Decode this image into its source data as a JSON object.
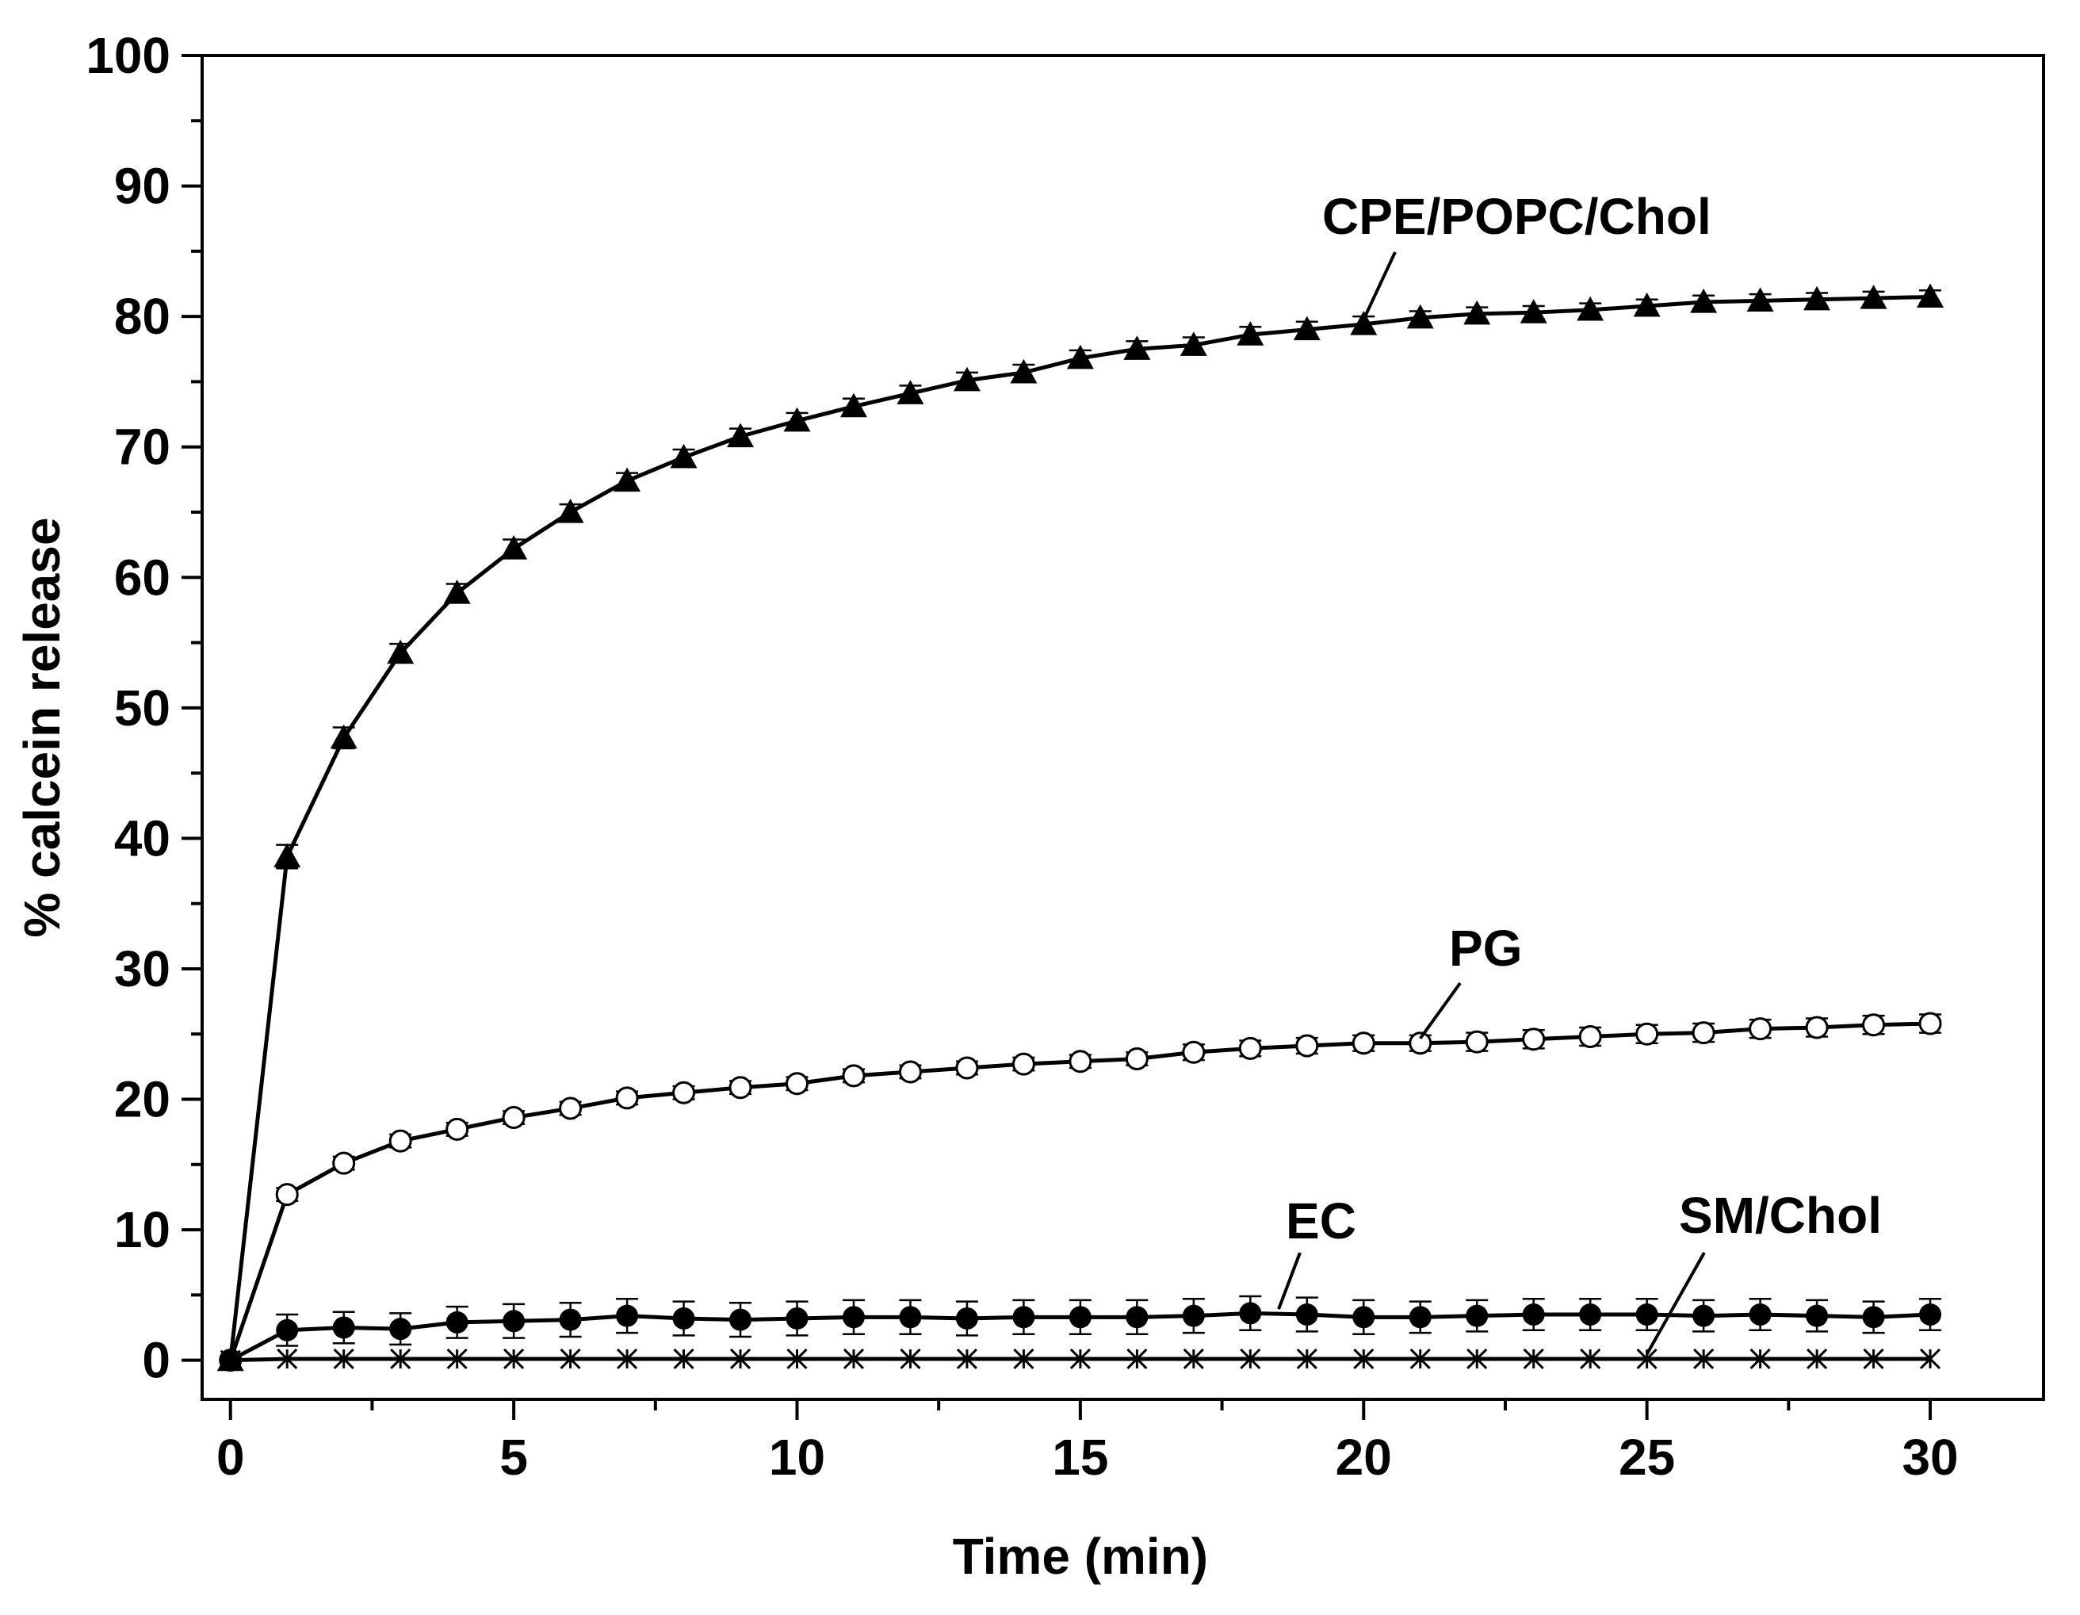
{
  "chart_data": {
    "type": "line",
    "title": "",
    "xlabel": "Time (min)",
    "ylabel": "% calcein release",
    "xlim": [
      -0.5,
      32
    ],
    "ylim": [
      -3,
      100
    ],
    "xticks": [
      0,
      5,
      10,
      15,
      20,
      25,
      30
    ],
    "yticks": [
      0,
      10,
      20,
      30,
      40,
      50,
      60,
      70,
      80,
      90,
      100
    ],
    "x": [
      0,
      1,
      2,
      3,
      4,
      5,
      6,
      7,
      8,
      9,
      10,
      11,
      12,
      13,
      14,
      15,
      16,
      17,
      18,
      19,
      20,
      21,
      22,
      23,
      24,
      25,
      26,
      27,
      28,
      29,
      30
    ],
    "series": [
      {
        "name": "CPE/POPC/Chol",
        "marker": "filled-triangle",
        "values": [
          0,
          38.6,
          47.7,
          54.2,
          58.8,
          62.2,
          65.0,
          67.4,
          69.2,
          70.8,
          72.0,
          73.1,
          74.1,
          75.1,
          75.7,
          76.8,
          77.5,
          77.8,
          78.6,
          79.0,
          79.4,
          79.9,
          80.2,
          80.3,
          80.5,
          80.8,
          81.1,
          81.2,
          81.3,
          81.4,
          81.5
        ],
        "errors": [
          0,
          0.9,
          0.8,
          0.7,
          0.7,
          0.7,
          0.6,
          0.6,
          0.6,
          0.6,
          0.6,
          0.6,
          0.6,
          0.6,
          0.6,
          0.6,
          0.6,
          0.6,
          0.6,
          0.6,
          0.6,
          0.5,
          0.5,
          0.5,
          0.5,
          0.5,
          0.5,
          0.5,
          0.5,
          0.5,
          0.5
        ]
      },
      {
        "name": "PG",
        "marker": "open-circle",
        "values": [
          0,
          12.7,
          15.1,
          16.8,
          17.7,
          18.6,
          19.3,
          20.1,
          20.5,
          20.9,
          21.2,
          21.8,
          22.1,
          22.4,
          22.7,
          22.9,
          23.1,
          23.6,
          23.9,
          24.1,
          24.3,
          24.3,
          24.4,
          24.6,
          24.8,
          25.0,
          25.1,
          25.4,
          25.5,
          25.7,
          25.8
        ],
        "errors": [
          0,
          0.5,
          0.5,
          0.5,
          0.5,
          0.5,
          0.5,
          0.5,
          0.5,
          0.5,
          0.5,
          0.5,
          0.5,
          0.5,
          0.5,
          0.5,
          0.5,
          0.6,
          0.6,
          0.6,
          0.6,
          0.6,
          0.7,
          0.7,
          0.7,
          0.7,
          0.7,
          0.7,
          0.7,
          0.7,
          0.7
        ]
      },
      {
        "name": "EC",
        "marker": "filled-circle",
        "values": [
          0,
          2.3,
          2.5,
          2.4,
          2.9,
          3.0,
          3.1,
          3.4,
          3.2,
          3.1,
          3.2,
          3.3,
          3.3,
          3.2,
          3.3,
          3.3,
          3.3,
          3.4,
          3.6,
          3.5,
          3.3,
          3.3,
          3.4,
          3.5,
          3.5,
          3.5,
          3.4,
          3.5,
          3.4,
          3.3,
          3.5
        ],
        "errors": [
          0,
          1.2,
          1.2,
          1.2,
          1.2,
          1.3,
          1.3,
          1.3,
          1.3,
          1.3,
          1.3,
          1.3,
          1.3,
          1.3,
          1.3,
          1.3,
          1.3,
          1.3,
          1.3,
          1.3,
          1.3,
          1.2,
          1.2,
          1.2,
          1.2,
          1.2,
          1.2,
          1.2,
          1.2,
          1.2,
          1.2
        ]
      },
      {
        "name": "SM/Chol",
        "marker": "asterisk",
        "values": [
          0,
          0.1,
          0.1,
          0.1,
          0.1,
          0.1,
          0.1,
          0.1,
          0.1,
          0.1,
          0.1,
          0.1,
          0.1,
          0.1,
          0.1,
          0.1,
          0.1,
          0.1,
          0.1,
          0.1,
          0.1,
          0.1,
          0.1,
          0.1,
          0.1,
          0.1,
          0.1,
          0.1,
          0.1,
          0.1,
          0.1
        ],
        "errors": [
          0,
          0,
          0,
          0,
          0,
          0,
          0,
          0,
          0,
          0,
          0,
          0,
          0,
          0,
          0,
          0,
          0,
          0,
          0,
          0,
          0,
          0,
          0,
          0,
          0,
          0,
          0,
          0,
          0,
          0,
          0
        ]
      }
    ],
    "annotations": [
      {
        "text": "CPE/POPC/Chol",
        "series": "CPE/POPC/Chol",
        "pointer_x": 20,
        "label_anchor": "above-left"
      },
      {
        "text": "PG",
        "series": "PG",
        "pointer_x": 21,
        "label_anchor": "above"
      },
      {
        "text": "EC",
        "series": "EC",
        "pointer_x": 18.5,
        "label_anchor": "above"
      },
      {
        "text": "SM/Chol",
        "series": "SM/Chol",
        "pointer_x": 25,
        "label_anchor": "above-right"
      }
    ],
    "grid": false,
    "legend": "none"
  }
}
